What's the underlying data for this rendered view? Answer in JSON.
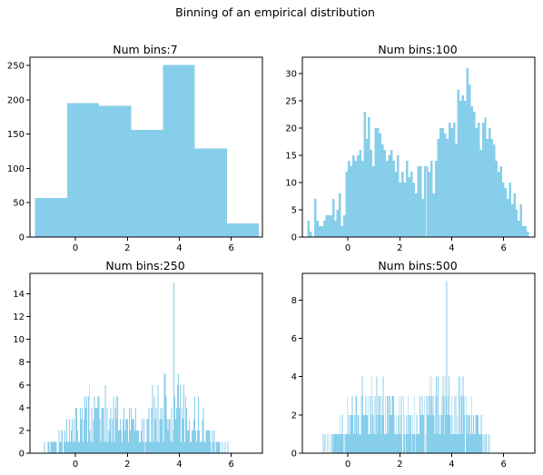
{
  "figure": {
    "title": "Binning of an empirical distribution",
    "bar_color": "#87CEEB"
  },
  "chart_data": [
    {
      "type": "bar",
      "title": "Num bins:7",
      "xlim": [
        -1.75,
        7.2
      ],
      "ylim": [
        0,
        262
      ],
      "xticks": [
        0,
        2,
        4,
        6
      ],
      "yticks": [
        0,
        50,
        100,
        150,
        200,
        250
      ],
      "bins": [
        {
          "x0": -1.55,
          "x1": -0.32,
          "count": 57
        },
        {
          "x0": -0.32,
          "x1": 0.91,
          "count": 195
        },
        {
          "x0": 0.91,
          "x1": 2.14,
          "count": 191
        },
        {
          "x0": 2.14,
          "x1": 3.37,
          "count": 156
        },
        {
          "x0": 3.37,
          "x1": 4.6,
          "count": 251
        },
        {
          "x0": 4.6,
          "x1": 5.83,
          "count": 129
        },
        {
          "x0": 5.83,
          "x1": 7.06,
          "count": 20
        }
      ]
    },
    {
      "type": "bar",
      "title": "Num bins:100",
      "xlim": [
        -1.75,
        7.2
      ],
      "ylim": [
        0,
        33
      ],
      "xticks": [
        0,
        2,
        4,
        6
      ],
      "yticks": [
        0,
        5,
        10,
        15,
        20,
        25,
        30
      ],
      "bin_start": -1.55,
      "bin_width": 0.0861,
      "counts": [
        3,
        1,
        0,
        7,
        3,
        2,
        2,
        3,
        4,
        4,
        4,
        7,
        3,
        5,
        8,
        2,
        4,
        12,
        14,
        13,
        15,
        14,
        15,
        16,
        14,
        23,
        18,
        22,
        16,
        13,
        20,
        20,
        19,
        17,
        16,
        14,
        15,
        16,
        14,
        12,
        15,
        10,
        12,
        10,
        14,
        11,
        12,
        10,
        8,
        13,
        13,
        7,
        13,
        13,
        12,
        14,
        8,
        14,
        18,
        20,
        20,
        19,
        18,
        21,
        20,
        21,
        17,
        27,
        25,
        26,
        25,
        31,
        28,
        24,
        23,
        20,
        21,
        16,
        21,
        22,
        18,
        20,
        18,
        17,
        14,
        12,
        13,
        10,
        9,
        7,
        10,
        6,
        8,
        5,
        3,
        6,
        2,
        2,
        1,
        0
      ]
    },
    {
      "type": "bar",
      "title": "Num bins:250",
      "xlim": [
        -1.75,
        7.2
      ],
      "ylim": [
        0,
        15.8
      ],
      "xticks": [
        0,
        2,
        4,
        6
      ],
      "yticks": [
        0,
        2,
        4,
        6,
        8,
        10,
        12,
        14
      ],
      "bin_start": -1.55,
      "bin_width": 0.0344,
      "seed": 17,
      "peaks": [
        0.9,
        3.8
      ],
      "max_count": 15
    },
    {
      "type": "bar",
      "title": "Num bins:500",
      "xlim": [
        -1.75,
        7.2
      ],
      "ylim": [
        0,
        9.4
      ],
      "xticks": [
        0,
        2,
        4,
        6
      ],
      "yticks": [
        0,
        2,
        4,
        6,
        8
      ],
      "bin_start": -1.55,
      "bin_width": 0.0172,
      "seed": 29,
      "peaks": [
        0.9,
        3.8
      ],
      "max_count": 9
    }
  ]
}
